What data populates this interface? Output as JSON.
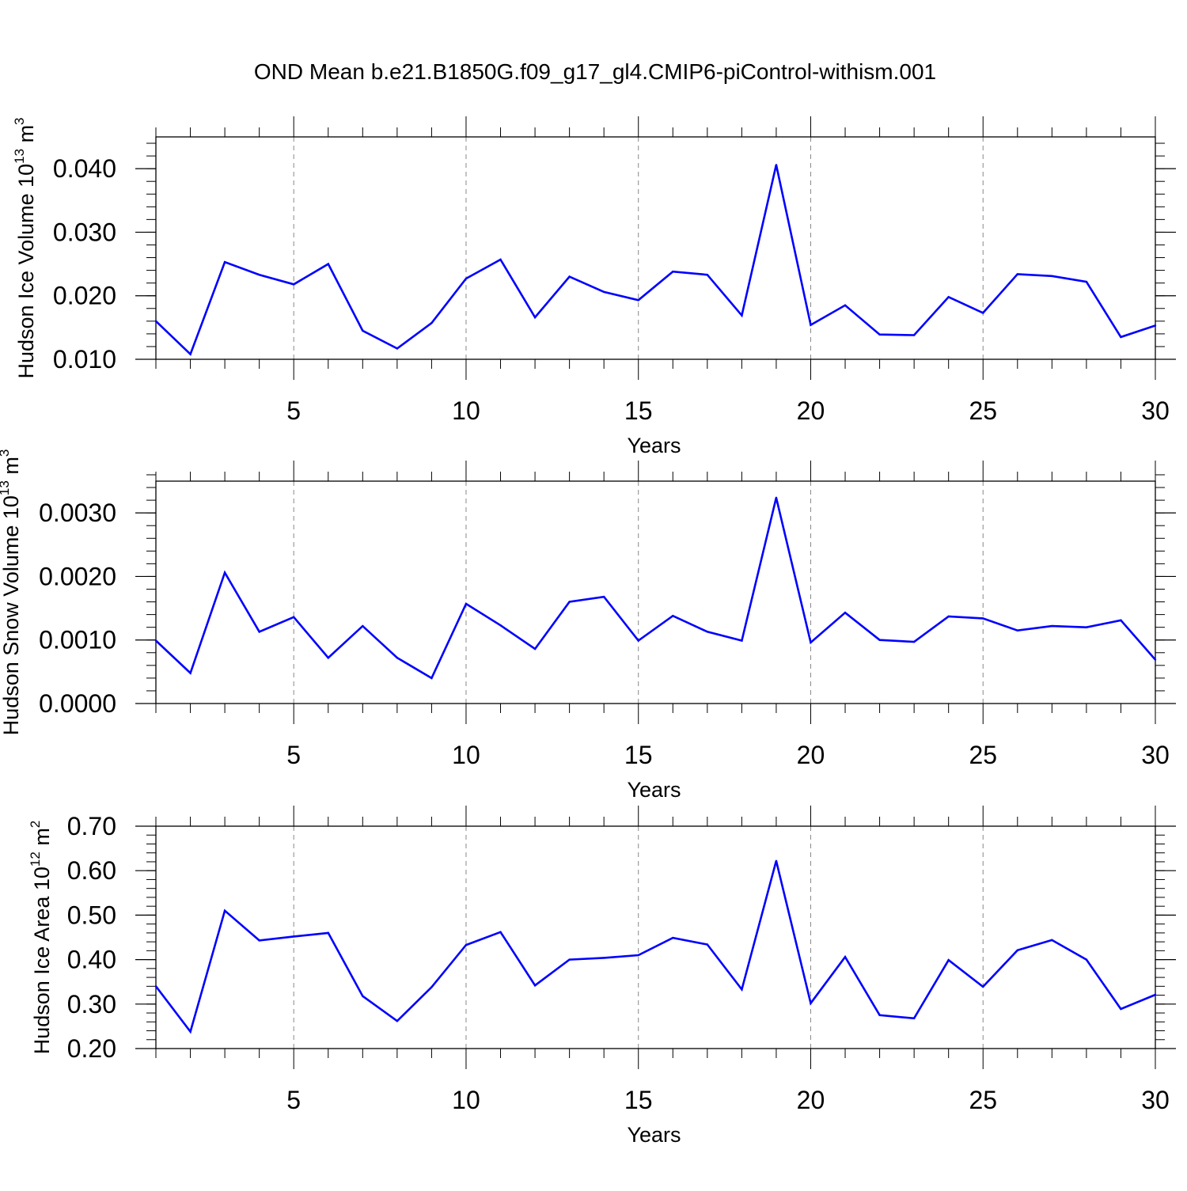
{
  "title": "OND Mean b.e21.B1850G.f09_g17_gl4.CMIP6-piControl-withism.001",
  "line_color": "#0000ff",
  "chart_data": [
    {
      "type": "line",
      "xlabel": "Years",
      "ylabel": "Hudson Ice Volume 10",
      "ylabel_exponent": "13",
      "ylabel_unit": "m",
      "ylabel_unit_exponent": "3",
      "xlim": [
        1,
        30
      ],
      "ylim": [
        0.01,
        0.045
      ],
      "yticks": [
        0.01,
        0.02,
        0.03,
        0.04
      ],
      "ytick_labels": [
        "0.010",
        "0.020",
        "0.030",
        "0.040"
      ],
      "yminor_step": 0.002,
      "xticks": [
        5,
        10,
        15,
        20,
        25,
        30
      ],
      "xtick_labels": [
        "5",
        "10",
        "15",
        "20",
        "25",
        "30"
      ],
      "x": [
        1,
        2,
        3,
        4,
        5,
        6,
        7,
        8,
        9,
        10,
        11,
        12,
        13,
        14,
        15,
        16,
        17,
        18,
        19,
        20,
        21,
        22,
        23,
        24,
        25,
        26,
        27,
        28,
        29,
        30
      ],
      "values": [
        0.016,
        0.0108,
        0.0253,
        0.0233,
        0.0218,
        0.025,
        0.0145,
        0.0117,
        0.0157,
        0.0227,
        0.0257,
        0.0166,
        0.023,
        0.0206,
        0.0193,
        0.0238,
        0.0233,
        0.0169,
        0.0406,
        0.0154,
        0.0185,
        0.0139,
        0.0138,
        0.0198,
        0.0173,
        0.0234,
        0.0231,
        0.0222,
        0.0135,
        0.0153
      ]
    },
    {
      "type": "line",
      "xlabel": "Years",
      "ylabel": "Hudson Snow Volume 10",
      "ylabel_exponent": "13",
      "ylabel_unit": "m",
      "ylabel_unit_exponent": "3",
      "xlim": [
        1,
        30
      ],
      "ylim": [
        0.0,
        0.0035
      ],
      "yticks": [
        0.0,
        0.001,
        0.002,
        0.003
      ],
      "ytick_labels": [
        "0.0000",
        "0.0010",
        "0.0020",
        "0.0030"
      ],
      "yminor_step": 0.0002,
      "xticks": [
        5,
        10,
        15,
        20,
        25,
        30
      ],
      "xtick_labels": [
        "5",
        "10",
        "15",
        "20",
        "25",
        "30"
      ],
      "x": [
        1,
        2,
        3,
        4,
        5,
        6,
        7,
        8,
        9,
        10,
        11,
        12,
        13,
        14,
        15,
        16,
        17,
        18,
        19,
        20,
        21,
        22,
        23,
        24,
        25,
        26,
        27,
        28,
        29,
        30
      ],
      "values": [
        0.00099,
        0.00048,
        0.00206,
        0.00113,
        0.00136,
        0.00072,
        0.00122,
        0.00072,
        0.0004,
        0.00157,
        0.00123,
        0.00086,
        0.0016,
        0.00168,
        0.00099,
        0.00138,
        0.00113,
        0.00099,
        0.00324,
        0.00096,
        0.00143,
        0.001,
        0.00097,
        0.00137,
        0.00134,
        0.00115,
        0.00122,
        0.0012,
        0.00131,
        0.00069
      ]
    },
    {
      "type": "line",
      "xlabel": "Years",
      "ylabel": "Hudson Ice Area 10",
      "ylabel_exponent": "12",
      "ylabel_unit": "m",
      "ylabel_unit_exponent": "2",
      "xlim": [
        1,
        30
      ],
      "ylim": [
        0.2,
        0.7
      ],
      "yticks": [
        0.2,
        0.3,
        0.4,
        0.5,
        0.6,
        0.7
      ],
      "ytick_labels": [
        "0.20",
        "0.30",
        "0.40",
        "0.50",
        "0.60",
        "0.70"
      ],
      "yminor_step": 0.02,
      "xticks": [
        5,
        10,
        15,
        20,
        25,
        30
      ],
      "xtick_labels": [
        "5",
        "10",
        "15",
        "20",
        "25",
        "30"
      ],
      "x": [
        1,
        2,
        3,
        4,
        5,
        6,
        7,
        8,
        9,
        10,
        11,
        12,
        13,
        14,
        15,
        16,
        17,
        18,
        19,
        20,
        21,
        22,
        23,
        24,
        25,
        26,
        27,
        28,
        29,
        30
      ],
      "values": [
        0.34,
        0.238,
        0.51,
        0.443,
        0.452,
        0.46,
        0.318,
        0.262,
        0.338,
        0.433,
        0.462,
        0.342,
        0.4,
        0.404,
        0.41,
        0.449,
        0.434,
        0.333,
        0.622,
        0.302,
        0.406,
        0.275,
        0.268,
        0.399,
        0.339,
        0.421,
        0.444,
        0.4,
        0.289,
        0.321
      ]
    }
  ]
}
